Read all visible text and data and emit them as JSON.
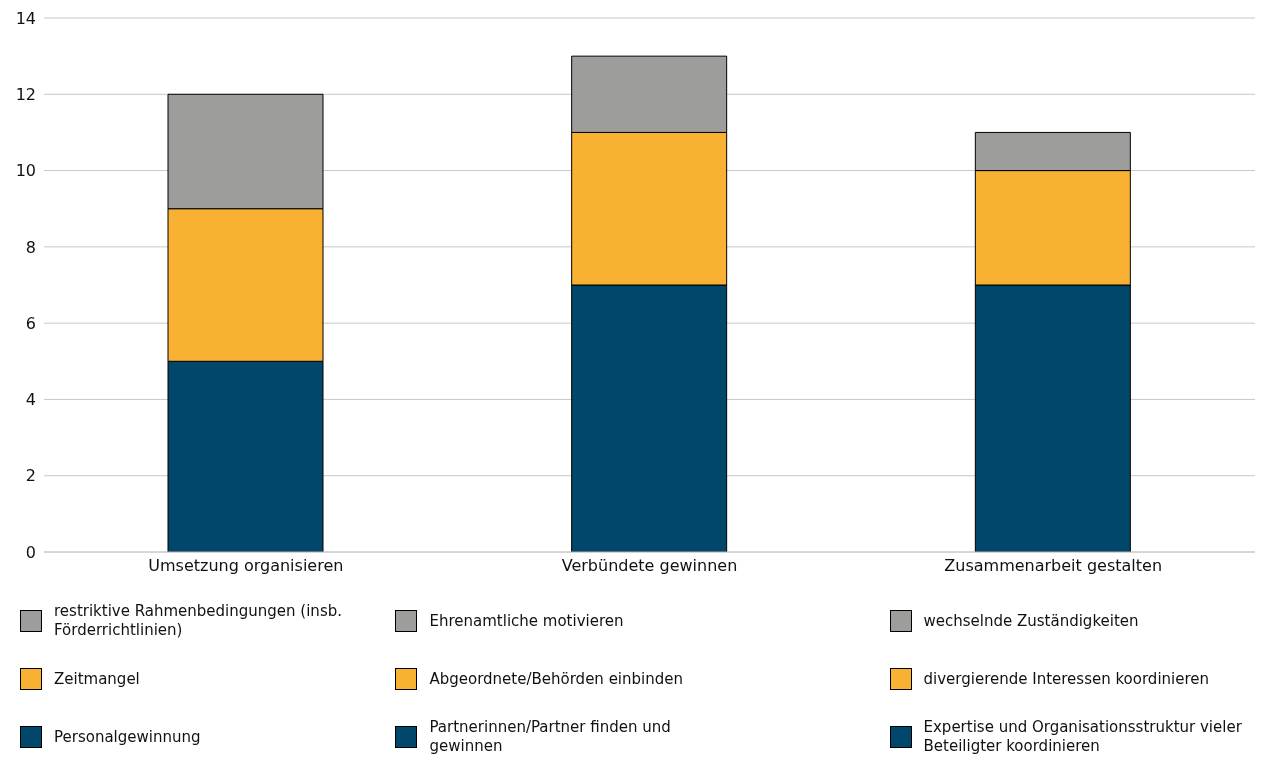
{
  "chart_data": {
    "type": "bar",
    "stacked": true,
    "categories": [
      "Umsetzung organisieren",
      "Verbündete gewinnen",
      "Zusammenarbeit gestalten"
    ],
    "series": [
      {
        "name": "Personalgewinnung",
        "color": "#00476b",
        "values": [
          5,
          null,
          null
        ]
      },
      {
        "name": "Zeitmangel",
        "color": "#f8b133",
        "values": [
          4,
          null,
          null
        ]
      },
      {
        "name": "restriktive Rahmenbedingungen (insb. Förderrichtlinien)",
        "color": "#9d9d9c",
        "values": [
          3,
          null,
          null
        ]
      },
      {
        "name": "Partnerinnen/Partner finden und gewinnen",
        "color": "#00476b",
        "values": [
          null,
          7,
          null
        ]
      },
      {
        "name": "Abgeordnete/Behörden einbinden",
        "color": "#f8b133",
        "values": [
          null,
          4,
          null
        ]
      },
      {
        "name": "Ehrenamtliche motivieren",
        "color": "#9d9d9c",
        "values": [
          null,
          2,
          null
        ]
      },
      {
        "name": "Expertise und Organisationsstruktur vieler Beteiligter koordinieren",
        "color": "#00476b",
        "values": [
          null,
          null,
          7
        ]
      },
      {
        "name": "divergierende Interessen koordinieren",
        "color": "#f8b133",
        "values": [
          null,
          null,
          3
        ]
      },
      {
        "name": "wechselnde Zuständigkeiten",
        "color": "#9d9d9c",
        "values": [
          null,
          null,
          1
        ]
      }
    ],
    "ylim": [
      0,
      14
    ],
    "yticks": [
      0,
      2,
      4,
      6,
      8,
      10,
      12,
      14
    ],
    "grid": "y",
    "legend": "bottom"
  }
}
